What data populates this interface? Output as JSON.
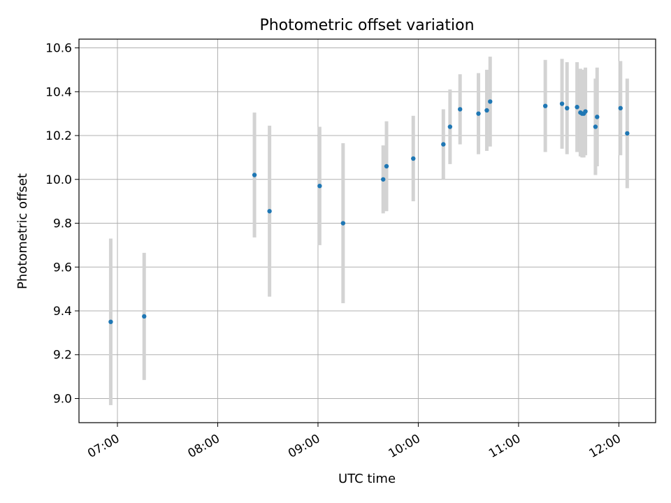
{
  "chart_data": {
    "type": "scatter",
    "title": "Photometric offset variation",
    "xlabel": "UTC time",
    "ylabel": "Photometric offset",
    "x_ticks": [
      "07:00",
      "08:00",
      "09:00",
      "10:00",
      "11:00",
      "12:00"
    ],
    "y_ticks": [
      "9.0",
      "9.2",
      "9.4",
      "9.6",
      "9.8",
      "10.0",
      "10.2",
      "10.4",
      "10.6"
    ],
    "xlim": [
      "06:37",
      "12:22"
    ],
    "ylim": [
      8.89,
      10.64
    ],
    "grid": true,
    "marker_color": "#1f77b4",
    "errorbar_color": "#d3d3d3",
    "points": [
      {
        "x": "06:56",
        "y": 9.35,
        "err": 0.38
      },
      {
        "x": "07:16",
        "y": 9.375,
        "err": 0.29
      },
      {
        "x": "08:22",
        "y": 10.02,
        "err": 0.285
      },
      {
        "x": "08:31",
        "y": 9.855,
        "err": 0.39
      },
      {
        "x": "09:01",
        "y": 9.97,
        "err": 0.27
      },
      {
        "x": "09:15",
        "y": 9.8,
        "err": 0.365
      },
      {
        "x": "09:39",
        "y": 10.0,
        "err": 0.155
      },
      {
        "x": "09:41",
        "y": 10.06,
        "err": 0.205
      },
      {
        "x": "09:57",
        "y": 10.095,
        "err": 0.195
      },
      {
        "x": "10:15",
        "y": 10.16,
        "err": 0.16
      },
      {
        "x": "10:19",
        "y": 10.24,
        "err": 0.17
      },
      {
        "x": "10:25",
        "y": 10.32,
        "err": 0.16
      },
      {
        "x": "10:36",
        "y": 10.3,
        "err": 0.185
      },
      {
        "x": "10:41",
        "y": 10.315,
        "err": 0.185
      },
      {
        "x": "10:43",
        "y": 10.355,
        "err": 0.205
      },
      {
        "x": "11:16",
        "y": 10.335,
        "err": 0.21
      },
      {
        "x": "11:26",
        "y": 10.345,
        "err": 0.205
      },
      {
        "x": "11:29",
        "y": 10.325,
        "err": 0.21
      },
      {
        "x": "11:35",
        "y": 10.33,
        "err": 0.205
      },
      {
        "x": "11:37",
        "y": 10.305,
        "err": 0.2
      },
      {
        "x": "11:38",
        "y": 10.3,
        "err": 0.2
      },
      {
        "x": "11:39",
        "y": 10.3,
        "err": 0.2
      },
      {
        "x": "11:40",
        "y": 10.31,
        "err": 0.2
      },
      {
        "x": "11:46",
        "y": 10.24,
        "err": 0.22
      },
      {
        "x": "11:47",
        "y": 10.285,
        "err": 0.225
      },
      {
        "x": "12:01",
        "y": 10.325,
        "err": 0.215
      },
      {
        "x": "12:05",
        "y": 10.21,
        "err": 0.25
      }
    ]
  }
}
